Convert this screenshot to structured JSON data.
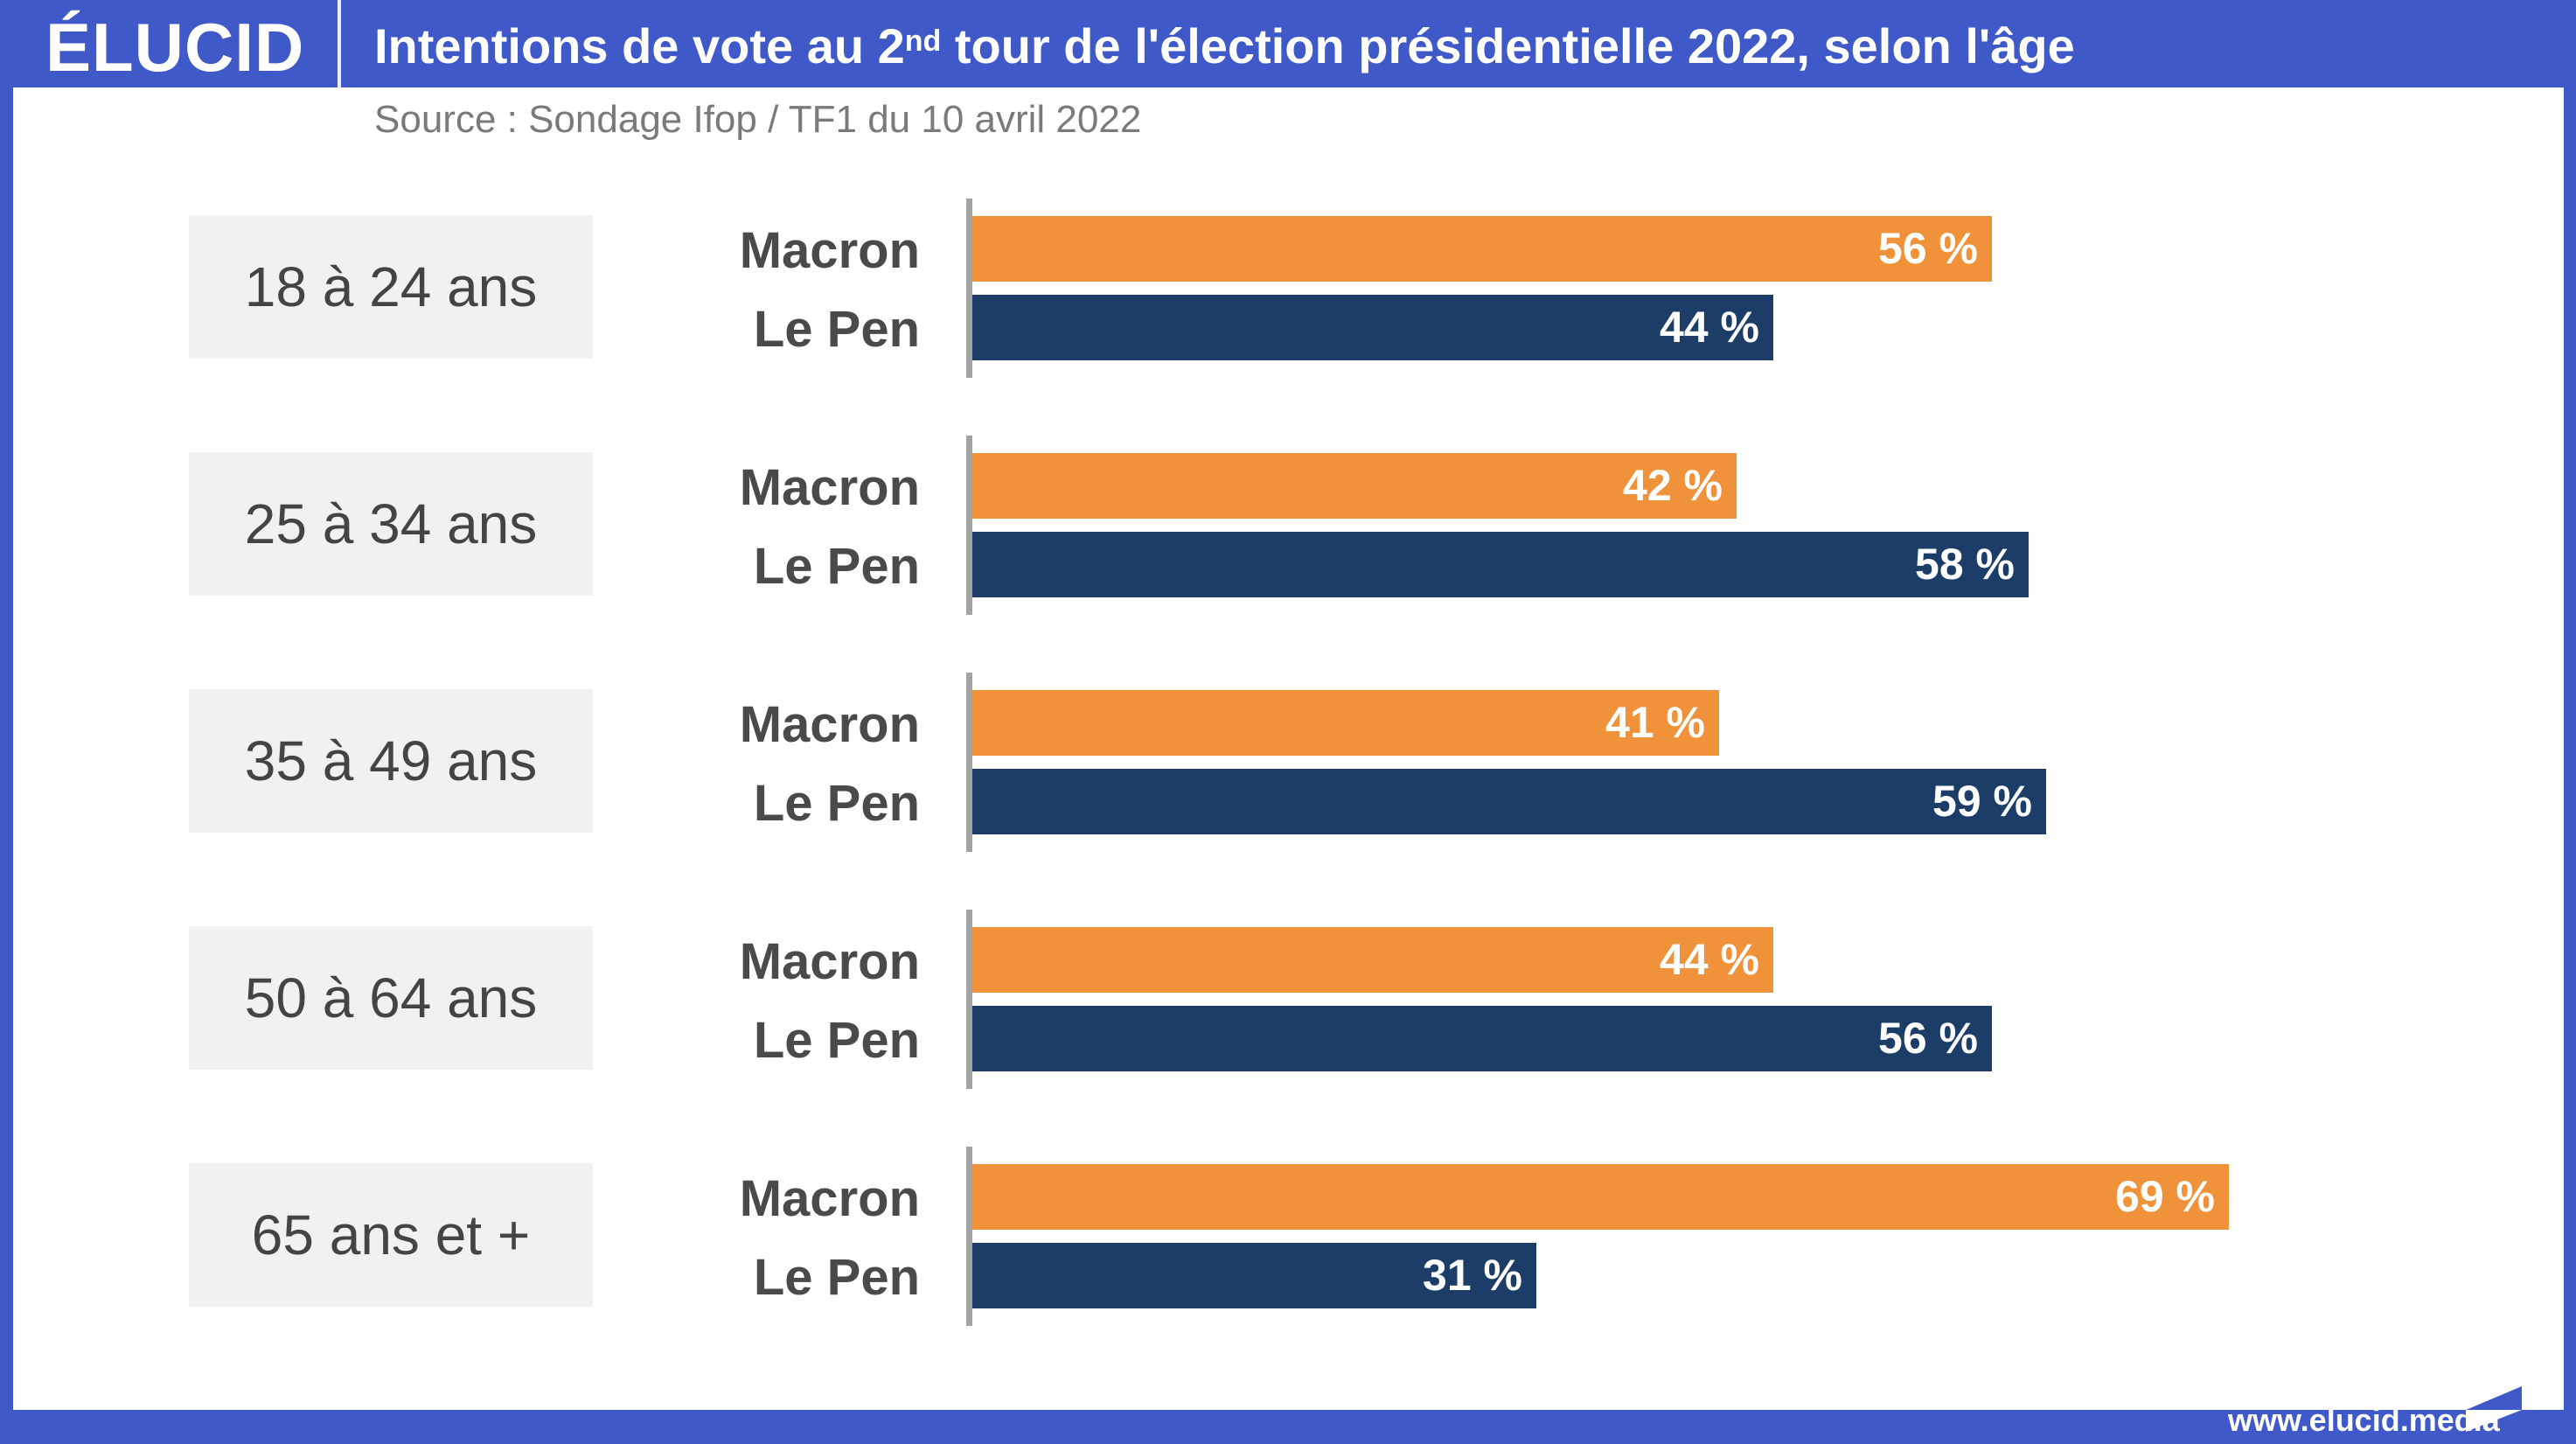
{
  "header": {
    "logo": "ÉLUCID",
    "title_pre": "Intentions de vote au 2",
    "title_sup": "nd",
    "title_post": " tour de l'élection présidentielle 2022, selon l'âge",
    "source": "Source : Sondage Ifop / TF1 du 10 avril 2022"
  },
  "footer": {
    "url": "www.elucid.media"
  },
  "colors": {
    "brand_blue": "#3f59c8",
    "macron": "#f0923a",
    "le_pen": "#1b3d68",
    "age_box": "#f1f1f1"
  },
  "chart_data": {
    "type": "bar",
    "orientation": "horizontal",
    "title": "Intentions de vote au 2nd tour de l'élection présidentielle 2022, selon l'âge",
    "subtitle": "Source : Sondage Ifop / TF1 du 10 avril 2022",
    "categories": [
      "18 à 24 ans",
      "25 à 34 ans",
      "35 à 49 ans",
      "50 à 64 ans",
      "65 ans et +"
    ],
    "series": [
      {
        "name": "Macron",
        "values": [
          56,
          42,
          41,
          44,
          69
        ],
        "labels": [
          "56 %",
          "42 %",
          "41 %",
          "44 %",
          "69 %"
        ]
      },
      {
        "name": "Le Pen",
        "values": [
          44,
          58,
          59,
          56,
          31
        ],
        "labels": [
          "44 %",
          "58 %",
          "59 %",
          "56 %",
          "31 %"
        ]
      }
    ],
    "xlabel": "",
    "ylabel": "",
    "xlim": [
      0,
      100
    ],
    "unit": "%",
    "grid": false,
    "legend": "none"
  }
}
